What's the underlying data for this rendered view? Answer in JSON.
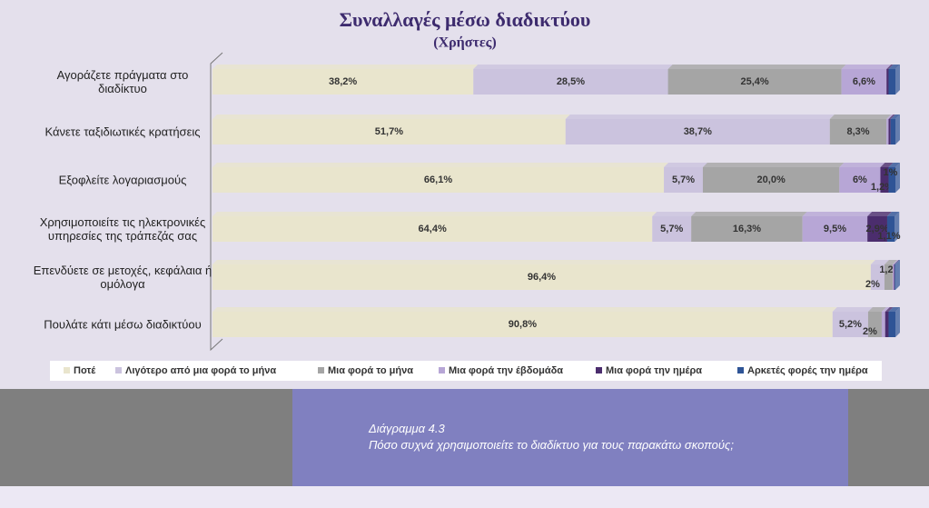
{
  "chart_data": {
    "type": "stacked-bar-horizontal",
    "title": "Συναλλαγές μέσω διαδικτύου",
    "subtitle": "(Χρήστες)",
    "categories": [
      "Αγοράζετε πράγματα στο διαδίκτυο",
      "Κάνετε ταξιδιωτικές κρατήσεις",
      "Εξοφλείτε λογαριασμούς",
      "Χρησιμοποιείτε τις ηλεκτρονικές υπηρεσίες της τράπεζάς σας",
      "Επενδύετε σε μετοχές, κεφάλαια ή ομόλογα",
      "Πουλάτε κάτι μέσω διαδικτύου"
    ],
    "xlim": [
      0,
      100
    ],
    "series": [
      {
        "name": "Ποτέ",
        "color": "#e9e5cd",
        "values": [
          38.2,
          51.7,
          66.1,
          64.4,
          96.4,
          90.8
        ],
        "value_labels": [
          "38,2%",
          "51,7%",
          "66,1%",
          "64,4%",
          "96,4%",
          "90,8%"
        ]
      },
      {
        "name": "Λιγότερο από μια φορά το μήνα",
        "color": "#cbc3de",
        "values": [
          28.5,
          38.7,
          5.7,
          5.7,
          2,
          5.2
        ],
        "value_labels": [
          "28,5%",
          "38,7%",
          "5,7%",
          "5,7%",
          "2%",
          "5,2%"
        ]
      },
      {
        "name": "Μια φορά το μήνα",
        "color": "#a5a5a5",
        "values": [
          25.4,
          8.3,
          20.0,
          16.3,
          1.2,
          2
        ],
        "value_labels": [
          "25,4%",
          "8,3%",
          "20,0%",
          "16,3%",
          "1,2",
          "2%"
        ]
      },
      {
        "name": "Μια φορά την έβδομάδα",
        "color": "#b7a6d6",
        "values": [
          6.6,
          0.3,
          6,
          9.5,
          0.2,
          0.5
        ],
        "value_labels": [
          "6,6%",
          null,
          "6%",
          "9,5%",
          null,
          null
        ]
      },
      {
        "name": "Μια φορά την ημέρα",
        "color": "#4b2d6d",
        "values": [
          0.3,
          0.3,
          1.2,
          2.9,
          0.1,
          0.5
        ],
        "value_labels": [
          null,
          null,
          "1,2%",
          "2,9%",
          null,
          null
        ]
      },
      {
        "name": "Αρκετές φορές την ημέρα",
        "color": "#2f5496",
        "values": [
          1.0,
          0.7,
          1,
          1.1,
          0.1,
          1.0
        ],
        "value_labels": [
          null,
          null,
          "1%",
          "1,1%",
          null,
          null
        ]
      }
    ]
  },
  "caption": {
    "number": "Διάγραμμα 4.3",
    "text": "Πόσο συχνά χρησιμοποιείτε το διαδίκτυο για τους παρακάτω σκοπούς;"
  }
}
